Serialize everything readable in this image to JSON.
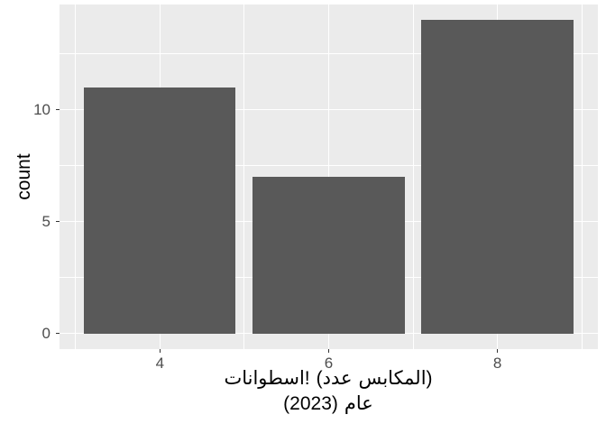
{
  "chart_data": {
    "type": "bar",
    "title": "",
    "categories": [
      "4",
      "6",
      "8"
    ],
    "x": [
      4,
      6,
      8
    ],
    "values": [
      11,
      7,
      14
    ],
    "ylabel": "count",
    "xlabel_lines": [
      [
        "اسطوانات!",
        "(عدد",
        "المكابس)"
      ],
      [
        "(2023)",
        "عام"
      ]
    ],
    "xticks": {
      "values": [
        4,
        6,
        8
      ],
      "labels": [
        "4",
        "6",
        "8"
      ]
    },
    "yticks": {
      "values": [
        0,
        5,
        10
      ],
      "labels": [
        "0",
        "5",
        "10"
      ]
    },
    "x_minor_ticks": [
      3,
      5,
      7,
      9
    ],
    "y_minor_ticks": [
      2.5,
      7.5,
      12.5
    ],
    "xlim": [
      2.81,
      9.19
    ],
    "ylim": [
      -0.7,
      14.7
    ],
    "bar_width": 1.8,
    "grid": true,
    "legend_position": "none",
    "colors": {
      "background": "#FFFFFF",
      "panel_background": "#EBEBEB",
      "bar_fill": "#595959",
      "gridline": "#FFFFFF",
      "tick_label_text": "#4D4D4D",
      "axis_title_text": "#000000",
      "tick_mark": "#333333"
    }
  }
}
